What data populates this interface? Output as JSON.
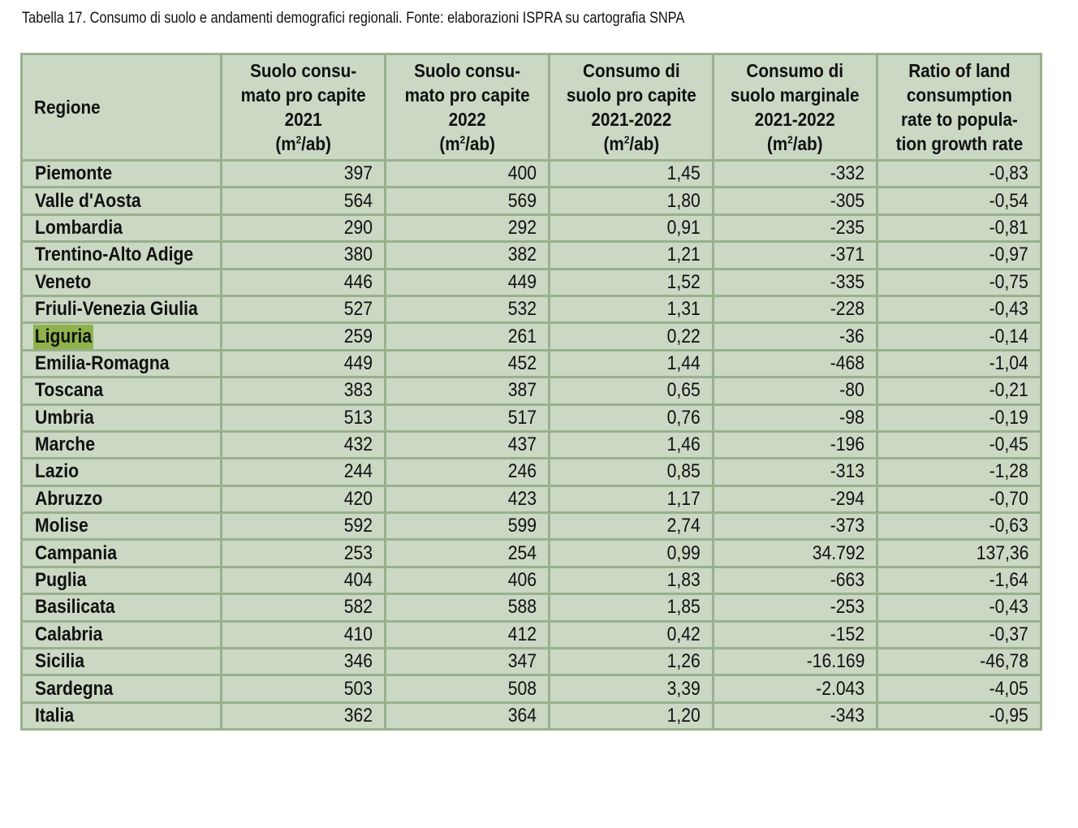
{
  "caption": "Tabella 17. Consumo di suolo e andamenti demografici regionali. Fonte: elaborazioni ISPRA su cartografia SNPA",
  "headers": [
    {
      "lines": [
        "Regione"
      ]
    },
    {
      "lines": [
        "Suolo consu-",
        "mato pro capite",
        "2021"
      ],
      "unit": "(m²/ab)"
    },
    {
      "lines": [
        "Suolo consu-",
        "mato pro capite",
        "2022"
      ],
      "unit": "(m²/ab)"
    },
    {
      "lines": [
        "Consumo di",
        "suolo pro capite",
        "2021-2022"
      ],
      "unit": "(m²/ab)"
    },
    {
      "lines": [
        "Consumo di",
        "suolo marginale",
        "2021-2022"
      ],
      "unit": "(m²/ab)"
    },
    {
      "lines": [
        "Ratio of land",
        "consumption",
        "rate to popula-",
        "tion growth rate"
      ]
    }
  ],
  "highlight_color": "#8fb24a",
  "rows": [
    {
      "region": "Piemonte",
      "c2021": "397",
      "c2022": "400",
      "per_capita": "1,45",
      "marginal": "-332",
      "ratio": "-0,83"
    },
    {
      "region": "Valle d'Aosta",
      "c2021": "564",
      "c2022": "569",
      "per_capita": "1,80",
      "marginal": "-305",
      "ratio": "-0,54"
    },
    {
      "region": "Lombardia",
      "c2021": "290",
      "c2022": "292",
      "per_capita": "0,91",
      "marginal": "-235",
      "ratio": "-0,81"
    },
    {
      "region": "Trentino-Alto Adige",
      "c2021": "380",
      "c2022": "382",
      "per_capita": "1,21",
      "marginal": "-371",
      "ratio": "-0,97"
    },
    {
      "region": "Veneto",
      "c2021": "446",
      "c2022": "449",
      "per_capita": "1,52",
      "marginal": "-335",
      "ratio": "-0,75"
    },
    {
      "region": "Friuli-Venezia Giulia",
      "c2021": "527",
      "c2022": "532",
      "per_capita": "1,31",
      "marginal": "-228",
      "ratio": "-0,43"
    },
    {
      "region": "Liguria",
      "c2021": "259",
      "c2022": "261",
      "per_capita": "0,22",
      "marginal": "-36",
      "ratio": "-0,14",
      "highlighted": true
    },
    {
      "region": "Emilia-Romagna",
      "c2021": "449",
      "c2022": "452",
      "per_capita": "1,44",
      "marginal": "-468",
      "ratio": "-1,04"
    },
    {
      "region": "Toscana",
      "c2021": "383",
      "c2022": "387",
      "per_capita": "0,65",
      "marginal": "-80",
      "ratio": "-0,21"
    },
    {
      "region": "Umbria",
      "c2021": "513",
      "c2022": "517",
      "per_capita": "0,76",
      "marginal": "-98",
      "ratio": "-0,19"
    },
    {
      "region": "Marche",
      "c2021": "432",
      "c2022": "437",
      "per_capita": "1,46",
      "marginal": "-196",
      "ratio": "-0,45"
    },
    {
      "region": "Lazio",
      "c2021": "244",
      "c2022": "246",
      "per_capita": "0,85",
      "marginal": "-313",
      "ratio": "-1,28"
    },
    {
      "region": "Abruzzo",
      "c2021": "420",
      "c2022": "423",
      "per_capita": "1,17",
      "marginal": "-294",
      "ratio": "-0,70"
    },
    {
      "region": "Molise",
      "c2021": "592",
      "c2022": "599",
      "per_capita": "2,74",
      "marginal": "-373",
      "ratio": "-0,63"
    },
    {
      "region": "Campania",
      "c2021": "253",
      "c2022": "254",
      "per_capita": "0,99",
      "marginal": "34.792",
      "ratio": "137,36"
    },
    {
      "region": "Puglia",
      "c2021": "404",
      "c2022": "406",
      "per_capita": "1,83",
      "marginal": "-663",
      "ratio": "-1,64"
    },
    {
      "region": "Basilicata",
      "c2021": "582",
      "c2022": "588",
      "per_capita": "1,85",
      "marginal": "-253",
      "ratio": "-0,43"
    },
    {
      "region": "Calabria",
      "c2021": "410",
      "c2022": "412",
      "per_capita": "0,42",
      "marginal": "-152",
      "ratio": "-0,37"
    },
    {
      "region": "Sicilia",
      "c2021": "346",
      "c2022": "347",
      "per_capita": "1,26",
      "marginal": "-16.169",
      "ratio": "-46,78"
    },
    {
      "region": "Sardegna",
      "c2021": "503",
      "c2022": "508",
      "per_capita": "3,39",
      "marginal": "-2.043",
      "ratio": "-4,05"
    },
    {
      "region": "Italia",
      "c2021": "362",
      "c2022": "364",
      "per_capita": "1,20",
      "marginal": "-343",
      "ratio": "-0,95"
    }
  ]
}
